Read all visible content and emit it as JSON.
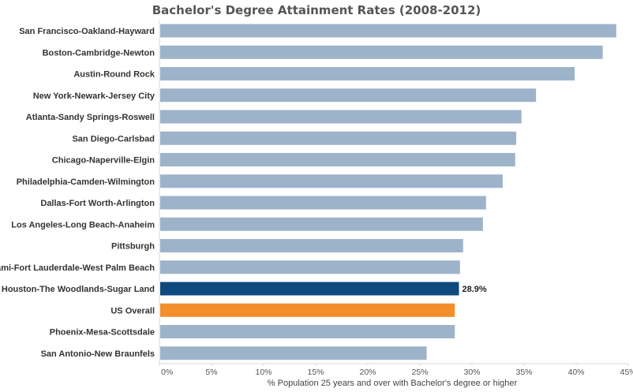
{
  "chart_data": {
    "type": "bar",
    "orientation": "horizontal",
    "title": "Bachelor's Degree Attainment Rates (2008-2012)",
    "xlabel": "% Population 25 years and over with Bachelor's degree or higher",
    "ylabel": "",
    "xlim": [
      0,
      45
    ],
    "x_ticks": [
      0,
      5,
      10,
      15,
      20,
      25,
      30,
      35,
      40,
      45
    ],
    "x_tick_labels": [
      "0%",
      "5%",
      "10%",
      "15%",
      "20%",
      "25%",
      "30%",
      "35%",
      "40%",
      "45%"
    ],
    "grid": false,
    "categories": [
      "San Francisco-Oakland-Hayward",
      "Boston-Cambridge-Newton",
      "Austin-Round Rock",
      "New York-Newark-Jersey City",
      "Atlanta-Sandy Springs-Roswell",
      "San Diego-Carlsbad",
      "Chicago-Naperville-Elgin",
      "Philadelphia-Camden-Wilmington",
      "Dallas-Fort Worth-Arlington",
      "Los Angeles-Long Beach-Anaheim",
      "Pittsburgh",
      "Miami-Fort Lauderdale-West Palm Beach",
      "Houston-The Woodlands-Sugar Land",
      "US Overall",
      "Phoenix-Mesa-Scottsdale",
      "San Antonio-New Braunfels"
    ],
    "values": [
      44.0,
      42.7,
      40.0,
      36.3,
      34.9,
      34.4,
      34.3,
      33.1,
      31.5,
      31.2,
      29.3,
      29.0,
      28.9,
      28.5,
      28.5,
      25.8
    ],
    "colors": {
      "default": "#9db3ca",
      "highlight": "#0e4a7d",
      "us_overall": "#f28e2b"
    },
    "highlight_category": "Houston-The Woodlands-Sugar Land",
    "us_category": "US Overall",
    "data_labels": [
      {
        "category": "Houston-The Woodlands-Sugar Land",
        "text": "28.9%"
      }
    ]
  }
}
